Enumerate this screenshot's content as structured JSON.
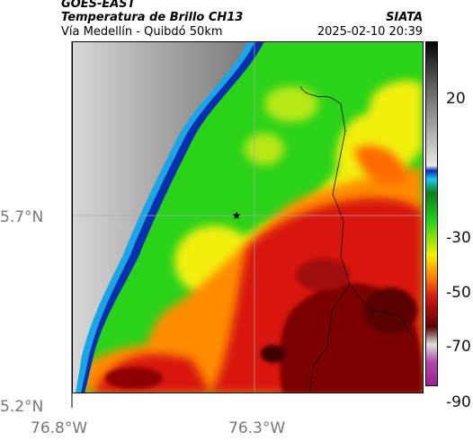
{
  "header": {
    "satellite": "GOES-EAST",
    "product": "Temperatura de Brillo CH13",
    "region": "Vía Medellín - Quibdó 50km",
    "org": "SIATA",
    "timestamp": "2025-02-10 20:39"
  },
  "axes": {
    "lat_labels": [
      "5.7°N",
      "5.2°N"
    ],
    "lon_labels": [
      "76.8°W",
      "76.3°W"
    ]
  },
  "colorbar": {
    "tick_labels": [
      "20",
      "-30",
      "-50",
      "-70",
      "-90"
    ],
    "colors": {
      "warm_gray_low": "#9e9e9e",
      "blue": "#0b2fb4",
      "cyan": "#1ec8f0",
      "green": "#22d21a",
      "yellow": "#f5f000",
      "orange": "#ff8a00",
      "red": "#d41a10",
      "dark_red": "#5a0404",
      "magenta": "#a01e96"
    }
  },
  "map": {
    "marker": "location-star-icon"
  }
}
